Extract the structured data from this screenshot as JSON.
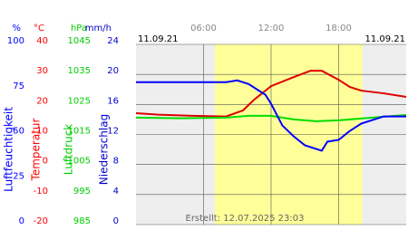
{
  "chart_data": {
    "type": "line",
    "date_left": "11.09.21",
    "date_right": "11.09.21",
    "footer": "Erstellt: 12.07.2025 23:03",
    "xlim": [
      0,
      24
    ],
    "xticks": [
      {
        "value": 6,
        "label": "06:00"
      },
      {
        "value": 12,
        "label": "12:00"
      },
      {
        "value": 18,
        "label": "18:00"
      }
    ],
    "highlight": [
      7,
      20.1
    ],
    "highlight_color": "#ffff99",
    "grid": true,
    "axes": [
      {
        "unit": "%",
        "title": "Luftfeuchtigkeit",
        "color": "#0000ff",
        "lim": [
          0,
          100
        ],
        "ticks": [
          0,
          25,
          50,
          75,
          100
        ]
      },
      {
        "unit": "°C",
        "title": "Temperatur",
        "color": "#ff0000",
        "lim": [
          -20,
          40
        ],
        "ticks": [
          -20,
          -10,
          0,
          10,
          20,
          30,
          40
        ]
      },
      {
        "unit": "hPa",
        "title": "Luftdruck",
        "color": "#00cc00",
        "lim": [
          985,
          1045
        ],
        "ticks": [
          985,
          995,
          1005,
          1015,
          1025,
          1035,
          1045
        ]
      },
      {
        "unit": "mm/h",
        "title": "Niederschlag",
        "color": "#0000cc",
        "lim": [
          0,
          24
        ],
        "ticks": [
          0,
          4,
          8,
          12,
          16,
          20,
          24
        ]
      }
    ],
    "series": [
      {
        "axis": 1,
        "color": "#dd0000",
        "x": [
          0,
          2,
          5,
          8,
          9.5,
          10.5,
          12,
          14,
          15.5,
          16.5,
          18,
          19,
          20,
          22,
          24
        ],
        "values": [
          17.1,
          16.6,
          16.2,
          16,
          18,
          21.6,
          26.1,
          29.1,
          31.2,
          31.2,
          28.2,
          25.8,
          24.6,
          23.7,
          22.5
        ]
      },
      {
        "axis": 2,
        "color": "#00dd00",
        "x": [
          0,
          4,
          8,
          10,
          12,
          14,
          16,
          18,
          20,
          22,
          24
        ],
        "values": [
          1020.6,
          1020.4,
          1020.6,
          1021.2,
          1021.2,
          1020,
          1019.4,
          1019.7,
          1020.3,
          1020.9,
          1021.5
        ]
      },
      {
        "axis": 0,
        "color": "#0000ff",
        "x": [
          0,
          2,
          4,
          6,
          8,
          9,
          10,
          11,
          11.5,
          12,
          13,
          14,
          15,
          16,
          16.5,
          17,
          18,
          19,
          20,
          21,
          22,
          23,
          24
        ],
        "values": [
          79,
          79,
          79,
          79,
          79,
          80,
          78,
          74,
          72,
          67,
          55,
          49,
          44,
          42,
          41,
          46,
          47,
          52,
          56,
          58,
          60,
          60,
          60
        ]
      }
    ]
  }
}
